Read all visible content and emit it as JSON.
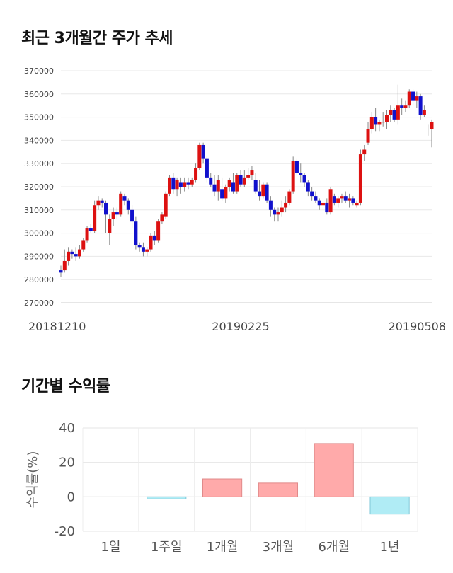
{
  "titles": {
    "price_trend": "최근 3개월간 주가 추세",
    "period_return": "기간별 수익률"
  },
  "chart_data": [
    {
      "type": "candlestick",
      "title": "최근 3개월간 주가 추세",
      "ylim": [
        270000,
        370000
      ],
      "yticks": [
        "270000",
        "280000",
        "290000",
        "300000",
        "310000",
        "320000",
        "330000",
        "340000",
        "350000",
        "360000",
        "370000"
      ],
      "xticks": [
        "20181210",
        "20190225",
        "20190508"
      ],
      "colors": {
        "up": "#dd1111",
        "down": "#1111cc"
      },
      "ohlc": [
        [
          284000,
          286000,
          281000,
          283000
        ],
        [
          284000,
          293000,
          283000,
          288000
        ],
        [
          288000,
          294000,
          286000,
          292000
        ],
        [
          292000,
          293000,
          289000,
          291000
        ],
        [
          291000,
          294000,
          288000,
          290000
        ],
        [
          290000,
          295000,
          289000,
          293000
        ],
        [
          293000,
          298000,
          292000,
          297000
        ],
        [
          297000,
          303000,
          296000,
          302000
        ],
        [
          302000,
          304000,
          300000,
          301000
        ],
        [
          301000,
          314000,
          300000,
          312000
        ],
        [
          312000,
          316000,
          310000,
          314000
        ],
        [
          314000,
          315000,
          311000,
          313000
        ],
        [
          313000,
          314000,
          300000,
          308000
        ],
        [
          300000,
          308000,
          295000,
          306000
        ],
        [
          306000,
          311000,
          303000,
          309000
        ],
        [
          309000,
          311000,
          306000,
          308000
        ],
        [
          308000,
          318000,
          307000,
          317000
        ],
        [
          316000,
          317000,
          312000,
          314000
        ],
        [
          314000,
          315000,
          308000,
          310000
        ],
        [
          310000,
          312000,
          302000,
          305000
        ],
        [
          305000,
          307000,
          293000,
          295000
        ],
        [
          295000,
          296000,
          292000,
          294000
        ],
        [
          294000,
          296000,
          290000,
          292000
        ],
        [
          292000,
          294000,
          290000,
          293000
        ],
        [
          293000,
          300000,
          292000,
          299000
        ],
        [
          299000,
          301000,
          295000,
          297000
        ],
        [
          297000,
          306000,
          296000,
          305000
        ],
        [
          305000,
          309000,
          304000,
          308000
        ],
        [
          307000,
          318000,
          306000,
          317000
        ],
        [
          317000,
          325000,
          316000,
          324000
        ],
        [
          324000,
          326000,
          317000,
          319000
        ],
        [
          319000,
          324000,
          316000,
          323000
        ],
        [
          322000,
          324000,
          317000,
          320000
        ],
        [
          320000,
          324000,
          318000,
          322000
        ],
        [
          322000,
          324000,
          319000,
          321000
        ],
        [
          321000,
          324000,
          320000,
          323000
        ],
        [
          323000,
          330000,
          322000,
          328000
        ],
        [
          328000,
          339000,
          327000,
          338000
        ],
        [
          338000,
          339000,
          330000,
          332000
        ],
        [
          332000,
          333000,
          322000,
          324000
        ],
        [
          324000,
          326000,
          320000,
          321000
        ],
        [
          321000,
          325000,
          316000,
          318000
        ],
        [
          318000,
          325000,
          314000,
          323000
        ],
        [
          319000,
          324000,
          314000,
          315000
        ],
        [
          315000,
          321000,
          313000,
          320000
        ],
        [
          320000,
          324000,
          318000,
          323000
        ],
        [
          322000,
          326000,
          317000,
          318000
        ],
        [
          318000,
          326000,
          317000,
          325000
        ],
        [
          325000,
          327000,
          320000,
          321000
        ],
        [
          321000,
          327000,
          320000,
          324000
        ],
        [
          324000,
          328000,
          323000,
          325000
        ],
        [
          325000,
          329000,
          323000,
          327000
        ],
        [
          323000,
          326000,
          317000,
          318000
        ],
        [
          318000,
          323000,
          314000,
          316000
        ],
        [
          316000,
          322000,
          315000,
          321000
        ],
        [
          321000,
          322000,
          313000,
          314000
        ],
        [
          314000,
          316000,
          307000,
          310000
        ],
        [
          310000,
          311000,
          305000,
          308000
        ],
        [
          308000,
          311000,
          305000,
          309000
        ],
        [
          309000,
          314000,
          307000,
          311000
        ],
        [
          311000,
          316000,
          309000,
          313000
        ],
        [
          313000,
          319000,
          312000,
          318000
        ],
        [
          318000,
          333000,
          317000,
          331000
        ],
        [
          331000,
          332000,
          325000,
          326000
        ],
        [
          326000,
          330000,
          322000,
          325000
        ],
        [
          325000,
          326000,
          320000,
          322000
        ],
        [
          322000,
          323000,
          316000,
          318000
        ],
        [
          318000,
          320000,
          314000,
          316000
        ],
        [
          316000,
          318000,
          313000,
          314000
        ],
        [
          314000,
          315000,
          310000,
          312000
        ],
        [
          312000,
          316000,
          310000,
          313000
        ],
        [
          313000,
          315000,
          308000,
          309000
        ],
        [
          309000,
          320000,
          308000,
          319000
        ],
        [
          316000,
          317000,
          312000,
          313000
        ],
        [
          313000,
          316000,
          311000,
          315000
        ],
        [
          315000,
          317000,
          313000,
          316000
        ],
        [
          316000,
          318000,
          313000,
          314000
        ],
        [
          314000,
          317000,
          311000,
          315000
        ],
        [
          315000,
          316000,
          312000,
          313000
        ],
        [
          312000,
          314000,
          311000,
          313000
        ],
        [
          313000,
          336000,
          312000,
          334000
        ],
        [
          334000,
          338000,
          331000,
          336000
        ],
        [
          339000,
          348000,
          338000,
          345000
        ],
        [
          345000,
          352000,
          343000,
          350000
        ],
        [
          350000,
          354000,
          344000,
          347000
        ],
        [
          347000,
          349000,
          344000,
          348000
        ],
        [
          348000,
          352000,
          346000,
          348000
        ],
        [
          348000,
          353000,
          345000,
          351000
        ],
        [
          351000,
          355000,
          348000,
          353000
        ],
        [
          353000,
          354000,
          348000,
          349000
        ],
        [
          349000,
          364000,
          347000,
          355000
        ],
        [
          355000,
          358000,
          351000,
          354000
        ],
        [
          354000,
          357000,
          352000,
          355000
        ],
        [
          355000,
          362000,
          354000,
          361000
        ],
        [
          361000,
          362000,
          355000,
          357000
        ],
        [
          357000,
          361000,
          354000,
          359000
        ],
        [
          359000,
          360000,
          349000,
          351000
        ],
        [
          351000,
          355000,
          350000,
          353000
        ],
        [
          345000,
          347000,
          342000,
          345000
        ],
        [
          345000,
          349000,
          337000,
          348000
        ]
      ],
      "bar_width": 5
    },
    {
      "type": "bar",
      "title": "기간별 수익률",
      "ylabel": "수익률(%)",
      "categories": [
        "1일",
        "1주일",
        "1개월",
        "3개월",
        "6개월",
        "1년"
      ],
      "values": [
        0,
        -1.2,
        10.4,
        8.0,
        31.0,
        -10.0
      ],
      "ylim": [
        -20,
        40
      ],
      "yticks": [
        "-20",
        "0",
        "20",
        "40"
      ],
      "colors": {
        "positive": "#ffaaaa",
        "positive_border": "#e08a8a",
        "negative": "#b0ecf5",
        "negative_border": "#80c8d8"
      },
      "grid": true
    }
  ]
}
